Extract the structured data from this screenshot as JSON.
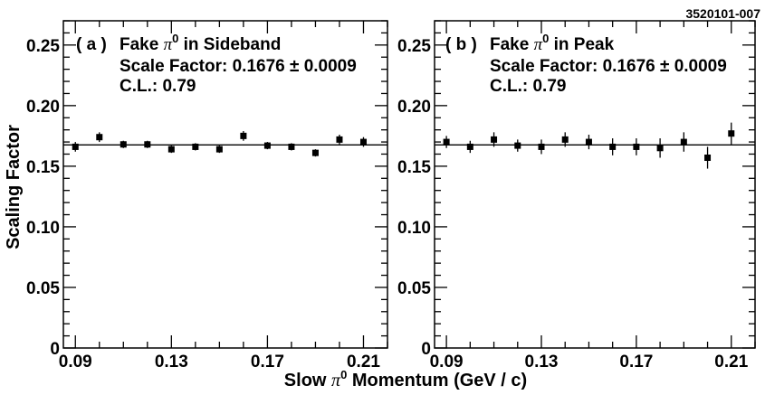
{
  "figure_id": "3520101-007",
  "ylabel": "Scaling Factor",
  "xlabel": {
    "prefix": "Slow ",
    "symbol": "π",
    "superscript": "0",
    "suffix": " Momentum (GeV / c)"
  },
  "chart_data": [
    {
      "type": "scatter",
      "panel_label": "( a )",
      "title_prefix": "Fake ",
      "title_symbol": "π",
      "title_superscript": "0",
      "title_suffix": " in Sideband",
      "scale_factor_text": "Scale Factor: 0.1676 ± 0.0009",
      "cl_text": "C.L.:  0.79",
      "fit_value": 0.1676,
      "xlim": [
        0.085,
        0.22
      ],
      "ylim": [
        0,
        0.27
      ],
      "x_ticks": [
        "0.09",
        "0.13",
        "0.17",
        "0.21"
      ],
      "y_ticks": [
        "0",
        "0.05",
        "0.10",
        "0.15",
        "0.20",
        "0.25"
      ],
      "x": [
        0.09,
        0.1,
        0.11,
        0.12,
        0.13,
        0.14,
        0.15,
        0.16,
        0.17,
        0.18,
        0.19,
        0.2,
        0.21
      ],
      "y": [
        0.166,
        0.174,
        0.168,
        0.168,
        0.164,
        0.166,
        0.164,
        0.175,
        0.167,
        0.166,
        0.161,
        0.172,
        0.17
      ],
      "yerr": [
        0.004,
        0.004,
        0.003,
        0.003,
        0.003,
        0.003,
        0.003,
        0.004,
        0.003,
        0.003,
        0.003,
        0.004,
        0.004
      ],
      "grid": false
    },
    {
      "type": "scatter",
      "panel_label": "( b )",
      "title_prefix": "Fake ",
      "title_symbol": "π",
      "title_superscript": "0",
      "title_suffix": " in Peak",
      "scale_factor_text": "Scale Factor: 0.1676 ± 0.0009",
      "cl_text": "C.L.:  0.79",
      "fit_value": 0.1676,
      "xlim": [
        0.085,
        0.22
      ],
      "ylim": [
        0,
        0.27
      ],
      "x_ticks": [
        "0.09",
        "0.13",
        "0.17",
        "0.21"
      ],
      "y_ticks": [
        "0",
        "0.05",
        "0.10",
        "0.15",
        "0.20",
        "0.25"
      ],
      "x": [
        0.09,
        0.1,
        0.11,
        0.12,
        0.13,
        0.14,
        0.15,
        0.16,
        0.17,
        0.18,
        0.19,
        0.2,
        0.21
      ],
      "y": [
        0.17,
        0.166,
        0.172,
        0.167,
        0.166,
        0.172,
        0.17,
        0.166,
        0.166,
        0.165,
        0.17,
        0.157,
        0.177
      ],
      "yerr": [
        0.005,
        0.005,
        0.006,
        0.005,
        0.006,
        0.006,
        0.006,
        0.007,
        0.007,
        0.008,
        0.008,
        0.009,
        0.009
      ],
      "grid": false
    }
  ]
}
